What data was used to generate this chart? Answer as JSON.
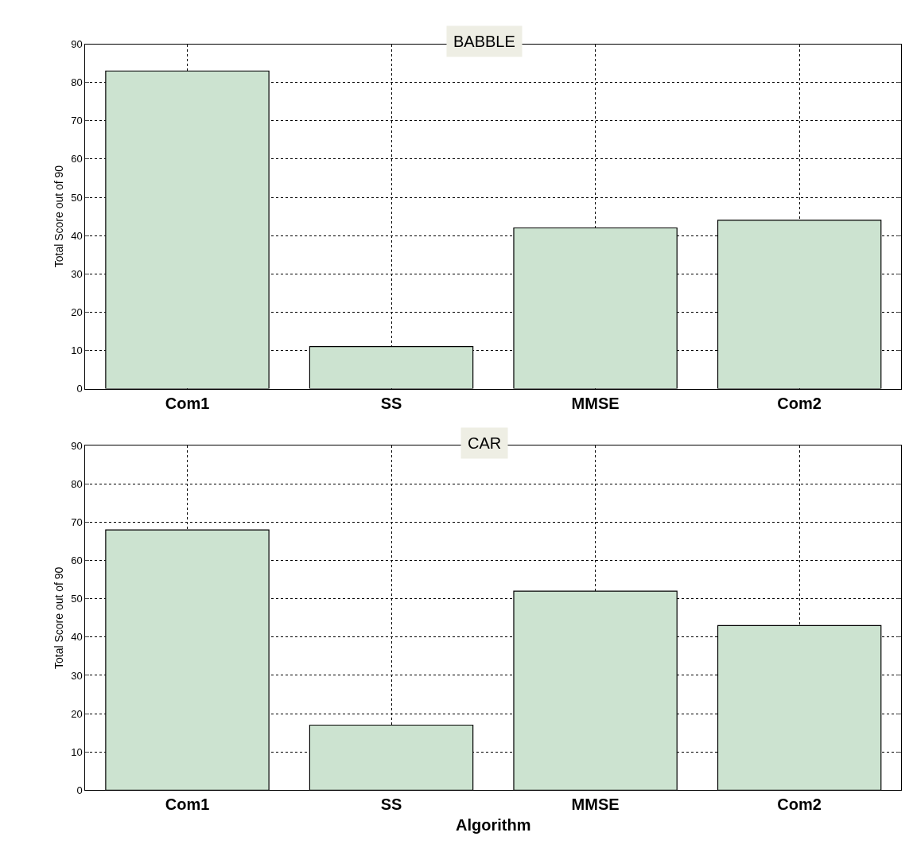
{
  "chart_data": [
    {
      "type": "bar",
      "title": "BABBLE",
      "ylabel": "Total Score out of 90",
      "categories": [
        "Com1",
        "SS",
        "MMSE",
        "Com2"
      ],
      "values": [
        83,
        11,
        42,
        44
      ],
      "color": "#cce3d0",
      "ylim": [
        0,
        90
      ],
      "yticks": [
        0,
        10,
        20,
        30,
        40,
        50,
        60,
        70,
        80,
        90
      ],
      "grid": true
    },
    {
      "type": "bar",
      "title": "CAR",
      "xlabel": "Algorithm",
      "ylabel": "Total Score out of 90",
      "categories": [
        "Com1",
        "SS",
        "MMSE",
        "Com2"
      ],
      "values": [
        68,
        17,
        52,
        43
      ],
      "color": "#cce3d0",
      "ylim": [
        0,
        90
      ],
      "yticks": [
        0,
        10,
        20,
        30,
        40,
        50,
        60,
        70,
        80,
        90
      ],
      "grid": true
    }
  ]
}
